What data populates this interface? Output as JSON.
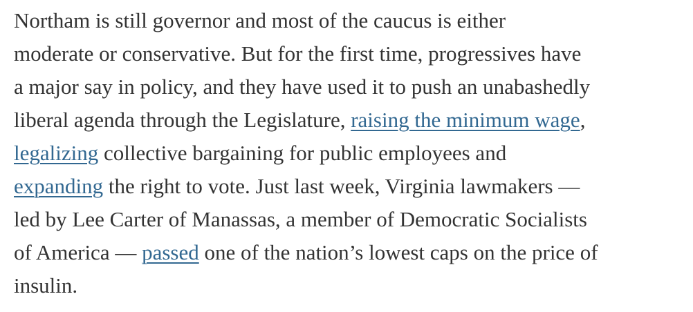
{
  "paragraph": {
    "lines": [
      [
        "Northam is still governor and most of the caucus is either"
      ],
      [
        "moderate or conservative. But for the first time, progressives have"
      ],
      [
        "a major say in policy, and they have used it to push an unabashedly"
      ],
      [
        "liberal agenda through the Legislature, ",
        {
          "link": "raising the minimum wage"
        },
        ","
      ],
      [
        {
          "link": "legalizing"
        },
        " collective bargaining for public employees and"
      ],
      [
        {
          "link": "expanding"
        },
        " the right to vote. Just last week, Virginia lawmakers —"
      ],
      [
        "led by Lee Carter of Manassas, a member of Democratic Socialists"
      ],
      [
        "of America — ",
        {
          "link": "passed"
        },
        " one of the nation’s lowest caps on the price of"
      ],
      [
        "insulin."
      ]
    ]
  }
}
